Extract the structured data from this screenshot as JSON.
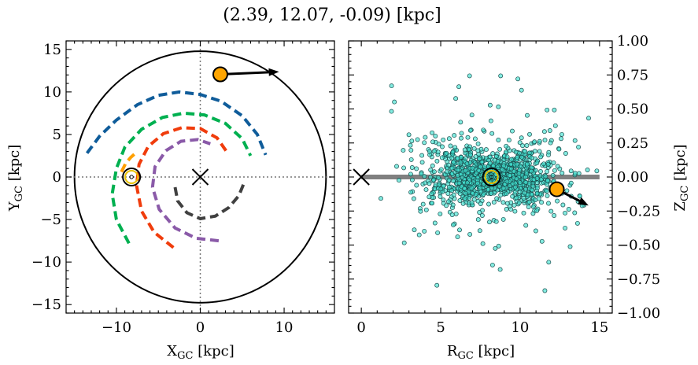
{
  "title": "(2.39, 12.07, -0.09) [kpc]",
  "chart_data": [
    {
      "type": "scatter",
      "panel": "left",
      "xlabel": "X",
      "xlabel_sub": "GC",
      "xlabel_unit": " [kpc]",
      "ylabel": "Y",
      "ylabel_sub": "GC",
      "ylabel_unit": " [kpc]",
      "xlim": [
        -16,
        16
      ],
      "ylim": [
        -16,
        16
      ],
      "xticks": [
        -10,
        0,
        10
      ],
      "xtick_labels": [
        "−10",
        "0",
        "10"
      ],
      "yticks": [
        -15,
        -10,
        -5,
        0,
        5,
        10,
        15
      ],
      "ytick_labels": [
        "−15",
        "−10",
        "−5",
        "0",
        "5",
        "10",
        "15"
      ],
      "boundary_circle_radius": 15,
      "galactic_center": [
        0,
        0
      ],
      "sun": [
        -8.2,
        0
      ],
      "object": {
        "x": 2.39,
        "y": 12.07,
        "vx": 7.0,
        "vy": 0.3
      },
      "spiral_arms": [
        {
          "color": "#0f5c9a",
          "points": [
            [
              -13.5,
              2.8
            ],
            [
              -12,
              4.8
            ],
            [
              -10,
              6.7
            ],
            [
              -7.5,
              8.5
            ],
            [
              -5,
              9.6
            ],
            [
              -2.5,
              10.0
            ],
            [
              0,
              9.7
            ],
            [
              2.5,
              8.9
            ],
            [
              5,
              7.2
            ],
            [
              6.8,
              5.0
            ],
            [
              7.8,
              2.6
            ]
          ]
        },
        {
          "color": "#00b050",
          "points": [
            [
              -8.5,
              -7.8
            ],
            [
              -10,
              -5
            ],
            [
              -10.5,
              -2
            ],
            [
              -10,
              1
            ],
            [
              -9,
              3.5
            ],
            [
              -7,
              5.6
            ],
            [
              -4.5,
              7.0
            ],
            [
              -2,
              7.5
            ],
            [
              0.5,
              7.3
            ],
            [
              3,
              6.3
            ],
            [
              5,
              4.5
            ],
            [
              6,
              2.5
            ]
          ]
        },
        {
          "color": "#ff9f00",
          "points": [
            [
              -9.4,
              0.6
            ],
            [
              -8.9,
              1.6
            ],
            [
              -8.3,
              2.3
            ],
            [
              -7.6,
              2.9
            ]
          ]
        },
        {
          "color": "#f03c0c",
          "points": [
            [
              -3.2,
              -8.3
            ],
            [
              -5.5,
              -6.5
            ],
            [
              -7,
              -4
            ],
            [
              -7.6,
              -1
            ],
            [
              -7.3,
              1.5
            ],
            [
              -6.2,
              3.6
            ],
            [
              -4.4,
              5.1
            ],
            [
              -2.2,
              5.8
            ],
            [
              0,
              5.7
            ],
            [
              2,
              4.6
            ],
            [
              3.2,
              2.9
            ]
          ]
        },
        {
          "color": "#8a5aa8",
          "points": [
            [
              2.2,
              -7.5
            ],
            [
              -0.5,
              -7.2
            ],
            [
              -3,
              -6
            ],
            [
              -4.9,
              -3.8
            ],
            [
              -5.7,
              -1.2
            ],
            [
              -5.4,
              1.2
            ],
            [
              -4.1,
              3.1
            ],
            [
              -2.3,
              4.2
            ],
            [
              -0.3,
              4.4
            ],
            [
              1.2,
              3.9
            ]
          ]
        },
        {
          "color": "#404040",
          "points": [
            [
              -3,
              -1.2
            ],
            [
              -2.7,
              -2.8
            ],
            [
              -1.6,
              -4.2
            ],
            [
              0,
              -4.9
            ],
            [
              1.8,
              -4.6
            ],
            [
              3.4,
              -3.6
            ],
            [
              4.6,
              -2.2
            ],
            [
              5.3,
              -0.5
            ]
          ]
        }
      ]
    },
    {
      "type": "scatter",
      "panel": "right",
      "xlabel": "R",
      "xlabel_sub": "GC",
      "xlabel_unit": " [kpc]",
      "ylabel": "Z",
      "ylabel_sub": "GC",
      "ylabel_unit": " [kpc]",
      "xlim": [
        -0.8,
        15.8
      ],
      "ylim": [
        -1.0,
        1.0
      ],
      "xticks": [
        0,
        5,
        10,
        15
      ],
      "xtick_labels": [
        "0",
        "5",
        "10",
        "15"
      ],
      "yticks": [
        -1.0,
        -0.75,
        -0.5,
        -0.25,
        0.0,
        0.25,
        0.5,
        0.75,
        1.0
      ],
      "ytick_labels": [
        "−1.00",
        "−0.75",
        "−0.50",
        "−0.25",
        "0.00",
        "0.25",
        "0.50",
        "0.75",
        "1.00"
      ],
      "disk_line": {
        "x": [
          0,
          15
        ],
        "y": 0
      },
      "galactic_center": [
        0,
        0
      ],
      "sun": [
        8.2,
        0
      ],
      "object": {
        "r": 12.31,
        "z": -0.09,
        "vr": 2.0,
        "vz": -0.12
      },
      "stars": {
        "count": 1400,
        "r_center": 8.2,
        "r_std": 2.1,
        "z_std_base": 0.05,
        "z_std_growth": 0.035,
        "color": "#40e0d0"
      }
    }
  ]
}
